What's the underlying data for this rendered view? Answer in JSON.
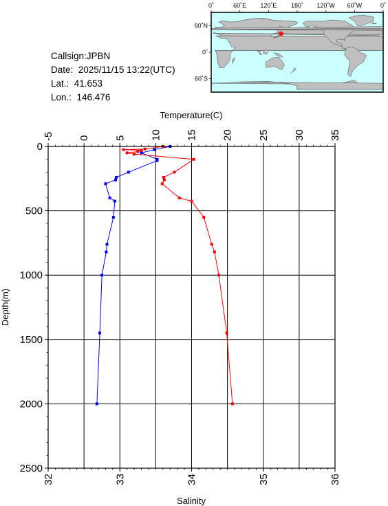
{
  "info": {
    "callsign": "Callsign:JPBN",
    "date": "Date:  2025/11/15 13:22(UTC)",
    "lat": "Lat.:  41.653",
    "lon": "Lon.:  146.476"
  },
  "map": {
    "lon_labels": [
      "0˚",
      "60˚E",
      "120˚E",
      "180˚",
      "120˚W",
      "60˚W",
      "0˚"
    ],
    "lat_labels": [
      "60˚N",
      "0˚",
      "60˚S"
    ],
    "station": {
      "lon": 146.476,
      "lat": 41.653
    },
    "colors": {
      "ocean": "#ccffff",
      "land": "#bfbfbf",
      "marker": "#ff0000"
    }
  },
  "chart_data": {
    "type": "line",
    "xlabel_top": "Temperature(C)",
    "xlabel_bottom": "Salinity",
    "ylabel": "Depth(m)",
    "temperature_axis": {
      "min": -5,
      "max": 35,
      "ticks": [
        "-5",
        "0",
        "5",
        "10",
        "15",
        "20",
        "25",
        "30",
        "35"
      ]
    },
    "salinity_axis": {
      "min": 32,
      "max": 36,
      "ticks": [
        "32",
        "33",
        "34",
        "35",
        "36"
      ]
    },
    "depth_axis": {
      "min": 0,
      "max": 2500,
      "ticks": [
        "0",
        "500",
        "1000",
        "1500",
        "2000",
        "2500"
      ]
    },
    "grid": true,
    "series": [
      {
        "color": "#0000ff",
        "variable": "temperature",
        "depth": [
          0,
          25,
          50,
          100,
          110,
          200,
          240,
          260,
          290,
          400,
          425,
          550,
          760,
          820,
          1000,
          1450,
          2000
        ],
        "values": [
          12.0,
          9.8,
          8.0,
          10.2,
          10.2,
          6.2,
          4.5,
          4.4,
          3.0,
          3.6,
          4.3,
          4.1,
          3.2,
          3.1,
          2.5,
          2.2,
          1.8
        ]
      },
      {
        "color": "#ff0000",
        "variable": "salinity",
        "depth": [
          0,
          20,
          25,
          30,
          40,
          50,
          60,
          100,
          200,
          240,
          260,
          290,
          400,
          425,
          550,
          760,
          820,
          1000,
          1450,
          2000
        ],
        "values": [
          33.6,
          33.35,
          33.05,
          33.3,
          33.25,
          33.1,
          33.2,
          34.03,
          33.76,
          33.61,
          33.62,
          33.59,
          33.83,
          34.0,
          34.17,
          34.28,
          34.32,
          34.38,
          34.49,
          34.57
        ]
      }
    ]
  }
}
